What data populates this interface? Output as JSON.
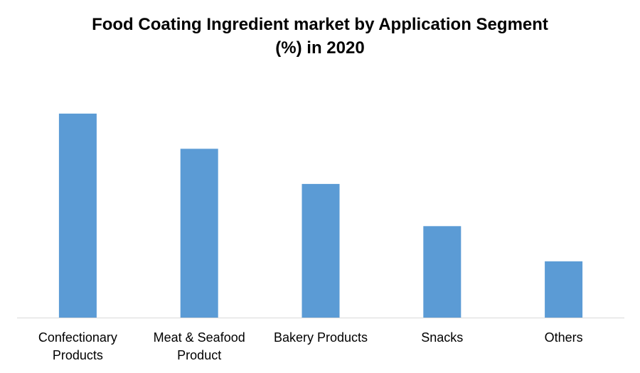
{
  "chart_data": {
    "type": "bar",
    "title_lines": [
      "Food Coating Ingredient market by Application Segment",
      "(%) in 2020"
    ],
    "categories": [
      [
        "Confectionary",
        "Products"
      ],
      [
        "Meat & Seafood",
        "Product"
      ],
      [
        "Bakery Products"
      ],
      [
        "Snacks"
      ],
      [
        "Others"
      ]
    ],
    "values": [
      29,
      24,
      19,
      13,
      8
    ],
    "ylim": [
      0,
      30
    ],
    "bar_color": "#5B9BD5",
    "axis_color": "#D9D9D9",
    "grid": false,
    "legend": "none"
  }
}
